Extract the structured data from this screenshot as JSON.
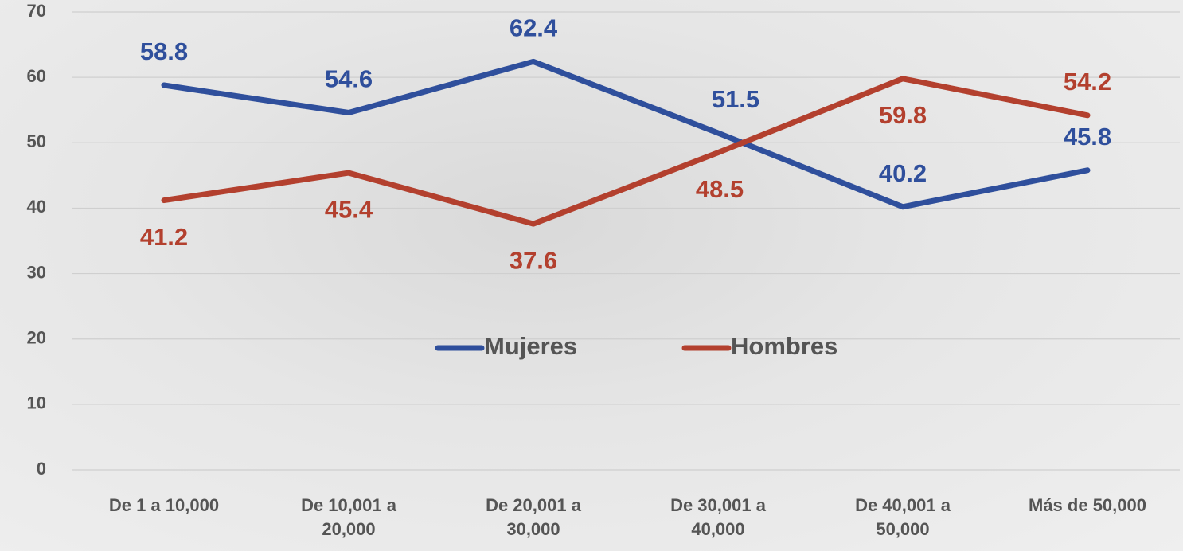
{
  "chart_data": {
    "type": "line",
    "categories": [
      "De 1 a 10,000",
      "De 10,001 a 20,000",
      "De 20,001 a 30,000",
      "De 30,001 a 40,000",
      "De 40,001 a 50,000",
      "Más de 50,000"
    ],
    "series": [
      {
        "name": "Mujeres",
        "color": "#2f4f9c",
        "values": [
          58.8,
          54.6,
          62.4,
          51.5,
          40.2,
          45.8
        ]
      },
      {
        "name": "Hombres",
        "color": "#b3402e",
        "values": [
          41.2,
          45.4,
          37.6,
          48.5,
          59.8,
          54.2
        ]
      }
    ],
    "ylim": [
      0,
      70
    ],
    "yticks": [
      0,
      10,
      20,
      30,
      40,
      50,
      60,
      70
    ],
    "grid": true,
    "legend": "center"
  }
}
